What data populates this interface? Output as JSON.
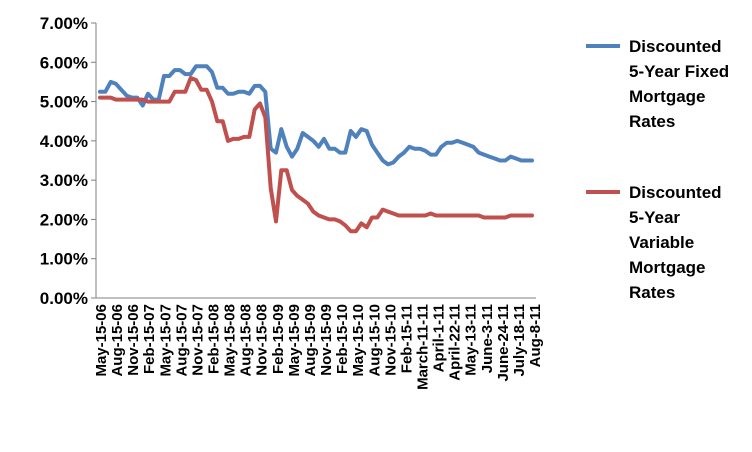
{
  "chart_data": {
    "type": "line",
    "ylim": [
      0,
      0.07
    ],
    "yticks": [
      "0.00%",
      "1.00%",
      "2.00%",
      "3.00%",
      "4.00%",
      "5.00%",
      "6.00%",
      "7.00%"
    ],
    "xticks": [
      "May-15-06",
      "Aug-15-06",
      "Nov-15-06",
      "Feb-15-07",
      "May-15-07",
      "Aug-15-07",
      "Nov-15-07",
      "Feb-15-08",
      "May-15-08",
      "Aug-15-08",
      "Nov-15-08",
      "Feb-15-09",
      "May-15-09",
      "Aug-15-09",
      "Nov-15-09",
      "Feb-15-10",
      "May-15-10",
      "Aug-15-10",
      "Nov-15-10",
      "Feb-15-11",
      "March-11-11",
      "April-1-11",
      "April-22-11",
      "May-13-11",
      "June-3-11",
      "June-24-11",
      "July-18-11",
      "Aug-8-11"
    ],
    "grid": false,
    "legend_position": "right",
    "series": [
      {
        "name": "Discounted 5-Year Fixed Mortgage Rates",
        "color": "#4f81bd",
        "values": [
          5.25,
          5.25,
          5.5,
          5.45,
          5.3,
          5.15,
          5.1,
          5.1,
          4.9,
          5.2,
          5.05,
          5.05,
          5.65,
          5.65,
          5.8,
          5.8,
          5.7,
          5.7,
          5.9,
          5.9,
          5.9,
          5.75,
          5.35,
          5.35,
          5.2,
          5.2,
          5.25,
          5.25,
          5.2,
          5.4,
          5.4,
          5.25,
          3.8,
          3.7,
          4.3,
          3.85,
          3.6,
          3.8,
          4.2,
          4.1,
          4.0,
          3.85,
          4.05,
          3.8,
          3.8,
          3.7,
          3.7,
          4.25,
          4.1,
          4.3,
          4.25,
          3.9,
          3.7,
          3.5,
          3.4,
          3.45,
          3.6,
          3.7,
          3.85,
          3.8,
          3.8,
          3.75,
          3.65,
          3.65,
          3.85,
          3.95,
          3.95,
          4.0,
          3.95,
          3.9,
          3.85,
          3.7,
          3.65,
          3.6,
          3.55,
          3.5,
          3.5,
          3.6,
          3.55,
          3.5,
          3.5,
          3.5
        ]
      },
      {
        "name": "Discounted 5-Year Variable Mortgage Rates",
        "color": "#c0504d",
        "values": [
          5.1,
          5.1,
          5.1,
          5.05,
          5.05,
          5.05,
          5.05,
          5.05,
          5.05,
          5.0,
          5.0,
          5.0,
          5.0,
          5.0,
          5.25,
          5.25,
          5.25,
          5.6,
          5.55,
          5.3,
          5.3,
          5.0,
          4.5,
          4.5,
          4.0,
          4.05,
          4.05,
          4.1,
          4.1,
          4.8,
          4.95,
          4.6,
          2.8,
          1.95,
          3.25,
          3.25,
          2.75,
          2.6,
          2.5,
          2.4,
          2.2,
          2.1,
          2.05,
          2.0,
          2.0,
          1.95,
          1.85,
          1.7,
          1.7,
          1.9,
          1.8,
          2.05,
          2.05,
          2.25,
          2.2,
          2.15,
          2.1,
          2.1,
          2.1,
          2.1,
          2.1,
          2.1,
          2.15,
          2.1,
          2.1,
          2.1,
          2.1,
          2.1,
          2.1,
          2.1,
          2.1,
          2.1,
          2.05,
          2.05,
          2.05,
          2.05,
          2.05,
          2.1,
          2.1,
          2.1,
          2.1,
          2.1
        ]
      }
    ]
  },
  "legend": {
    "fixed_lines": [
      "Discounted",
      "5-Year Fixed",
      "Mortgage",
      "Rates"
    ],
    "variable_lines": [
      "Discounted",
      "5-Year",
      "Variable",
      "Mortgage",
      "Rates"
    ]
  }
}
